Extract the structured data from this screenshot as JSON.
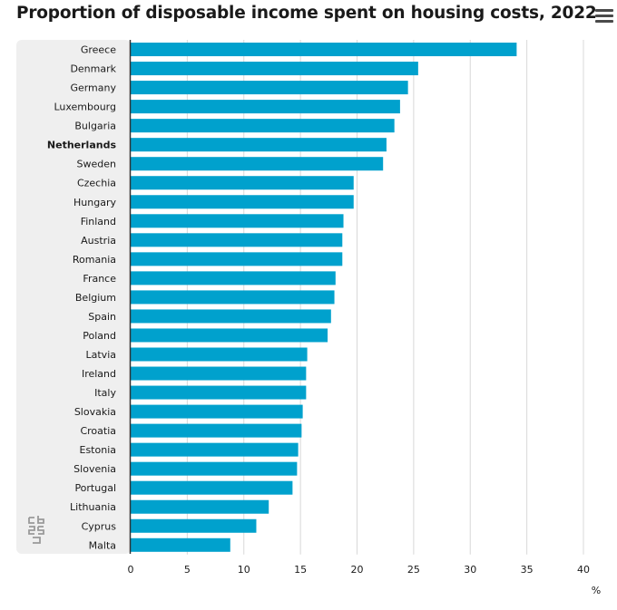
{
  "header": {
    "title": "Proportion of disposable income spent on housing costs, 2022"
  },
  "menu": {
    "icon": "hamburger-menu-icon"
  },
  "logo": {
    "icon": "cbs-logo-icon"
  },
  "colors": {
    "bar": "#00a1cd",
    "label_panel": "#efefef",
    "gridline": "#d8d8d8",
    "axis": "#333333"
  },
  "chart_data": {
    "type": "bar",
    "orientation": "horizontal",
    "title": "Proportion of disposable income spent on housing costs, 2022",
    "xlabel": "%",
    "xlim": [
      0,
      40
    ],
    "xticks": [
      0,
      5,
      10,
      15,
      20,
      25,
      30,
      35,
      40
    ],
    "grid": true,
    "highlight": "Netherlands",
    "categories": [
      "Greece",
      "Denmark",
      "Germany",
      "Luxembourg",
      "Bulgaria",
      "Netherlands",
      "Sweden",
      "Czechia",
      "Hungary",
      "Finland",
      "Austria",
      "Romania",
      "France",
      "Belgium",
      "Spain",
      "Poland",
      "Latvia",
      "Ireland",
      "Italy",
      "Slovakia",
      "Croatia",
      "Estonia",
      "Slovenia",
      "Portugal",
      "Lithuania",
      "Cyprus",
      "Malta"
    ],
    "values": [
      34.1,
      25.4,
      24.5,
      23.8,
      23.3,
      22.6,
      22.3,
      19.7,
      19.7,
      18.8,
      18.7,
      18.7,
      18.1,
      18.0,
      17.7,
      17.4,
      15.6,
      15.5,
      15.5,
      15.2,
      15.1,
      14.8,
      14.7,
      14.3,
      12.2,
      11.1,
      8.8
    ]
  }
}
